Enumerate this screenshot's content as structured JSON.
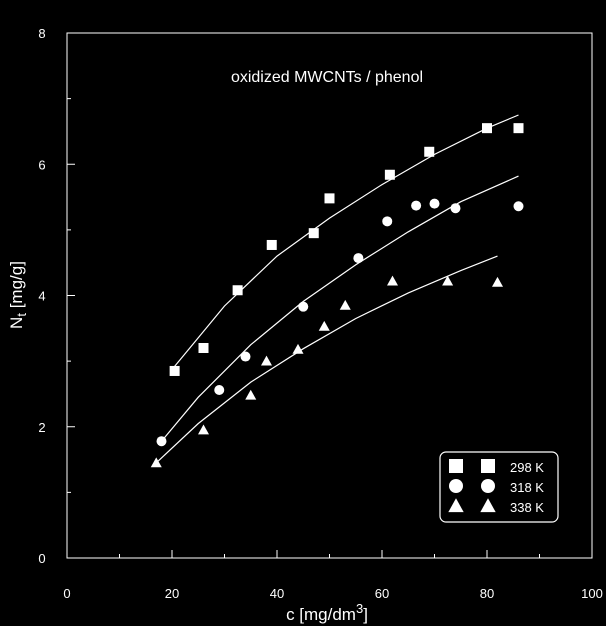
{
  "chart_data": {
    "type": "scatter",
    "title": "oxidized MWCNTs / phenol",
    "xlabel": "c [mg/dm",
    "xlabel_sup": "3",
    "xlabel_end": "]",
    "ylabel": "N",
    "ylabel_sub": "t",
    "ylabel_end": " [mg/g]",
    "xlim": [
      0,
      100
    ],
    "ylim": [
      0,
      8
    ],
    "x_major_ticks": [
      0,
      20,
      40,
      60,
      80,
      100
    ],
    "y_major_ticks": [
      0,
      2,
      4,
      6,
      8
    ],
    "x_tick_labels": [
      "0",
      "20",
      "40",
      "60",
      "80",
      "100"
    ],
    "y_tick_labels": [
      "0",
      "2",
      "4",
      "6",
      "8"
    ],
    "grid": false,
    "legend_position": "bottom-right",
    "colors": {
      "background": "#000000",
      "foreground": "#ffffff"
    },
    "series": [
      {
        "name": "298 K",
        "marker": "square",
        "x": [
          20.5,
          26,
          32.5,
          39,
          47,
          50,
          61.5,
          69,
          80,
          86
        ],
        "y": [
          2.85,
          3.2,
          4.08,
          4.77,
          4.95,
          5.48,
          5.84,
          6.19,
          6.55,
          6.55
        ],
        "fit": {
          "x": [
            20.5,
            30,
            40,
            50,
            60,
            70,
            80,
            86
          ],
          "y": [
            2.92,
            3.84,
            4.6,
            5.18,
            5.69,
            6.15,
            6.55,
            6.75
          ]
        }
      },
      {
        "name": "318 K",
        "marker": "circle",
        "x": [
          18,
          29,
          34,
          45,
          55.5,
          61,
          66.5,
          70,
          74,
          86
        ],
        "y": [
          1.78,
          2.56,
          3.07,
          3.83,
          4.57,
          5.13,
          5.37,
          5.4,
          5.33,
          5.36
        ],
        "fit": {
          "x": [
            18,
            25,
            35,
            45,
            55,
            65,
            75,
            86
          ],
          "y": [
            1.78,
            2.45,
            3.25,
            3.91,
            4.47,
            4.97,
            5.43,
            5.82
          ]
        }
      },
      {
        "name": "338 K",
        "marker": "triangle",
        "x": [
          17,
          26,
          35,
          38,
          44,
          49,
          53,
          62,
          72.5,
          82
        ],
        "y": [
          1.45,
          1.95,
          2.48,
          3.0,
          3.18,
          3.53,
          3.85,
          4.22,
          4.22,
          4.2
        ],
        "fit": {
          "x": [
            17,
            25,
            35,
            45,
            55,
            65,
            75,
            82
          ],
          "y": [
            1.45,
            2.05,
            2.68,
            3.19,
            3.65,
            4.04,
            4.38,
            4.6
          ]
        }
      }
    ]
  }
}
